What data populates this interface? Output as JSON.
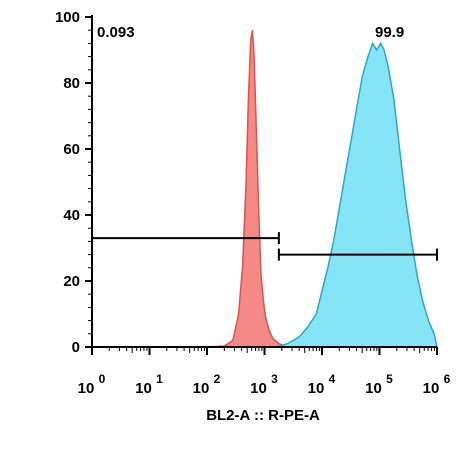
{
  "chart_data": {
    "type": "area",
    "xlabel": "BL2-A :: R-PE-A",
    "ylabel": "",
    "x_scale": "log",
    "xlim_exp": [
      0,
      6
    ],
    "ylim": [
      0,
      100
    ],
    "grid": false,
    "y_ticks": [
      {
        "value": 0,
        "label": "0"
      },
      {
        "value": 20,
        "label": "20"
      },
      {
        "value": 40,
        "label": "40"
      },
      {
        "value": 60,
        "label": "60"
      },
      {
        "value": 80,
        "label": "80"
      },
      {
        "value": 100,
        "label": "100"
      }
    ],
    "x_ticks": [
      {
        "base": "10",
        "exp": "0",
        "pos_exp": 0
      },
      {
        "base": "10",
        "exp": "1",
        "pos_exp": 1
      },
      {
        "base": "10",
        "exp": "2",
        "pos_exp": 2
      },
      {
        "base": "10",
        "exp": "3",
        "pos_exp": 3
      },
      {
        "base": "10",
        "exp": "4",
        "pos_exp": 4
      },
      {
        "base": "10",
        "exp": "5",
        "pos_exp": 5
      },
      {
        "base": "10",
        "exp": "6",
        "pos_exp": 6
      }
    ],
    "series": [
      {
        "color": "#f4837f",
        "stroke": "#d9534f",
        "points": [
          [
            2.0,
            0
          ],
          [
            2.3,
            0.3
          ],
          [
            2.45,
            2
          ],
          [
            2.55,
            10
          ],
          [
            2.62,
            25
          ],
          [
            2.68,
            50
          ],
          [
            2.72,
            75
          ],
          [
            2.76,
            93
          ],
          [
            2.79,
            96
          ],
          [
            2.82,
            88
          ],
          [
            2.86,
            65
          ],
          [
            2.9,
            40
          ],
          [
            2.94,
            22
          ],
          [
            2.98,
            14
          ],
          [
            3.02,
            9
          ],
          [
            3.08,
            5
          ],
          [
            3.15,
            2.5
          ],
          [
            3.25,
            1
          ],
          [
            3.4,
            0
          ]
        ]
      },
      {
        "color": "#7fe3f7",
        "stroke": "#2aa7c9",
        "points": [
          [
            3.2,
            0
          ],
          [
            3.4,
            1
          ],
          [
            3.6,
            3
          ],
          [
            3.75,
            6
          ],
          [
            3.9,
            10
          ],
          [
            4.0,
            17
          ],
          [
            4.1,
            24
          ],
          [
            4.2,
            32
          ],
          [
            4.3,
            42
          ],
          [
            4.4,
            52
          ],
          [
            4.5,
            62
          ],
          [
            4.6,
            72
          ],
          [
            4.7,
            82
          ],
          [
            4.8,
            88
          ],
          [
            4.88,
            92
          ],
          [
            4.95,
            90
          ],
          [
            5.02,
            92
          ],
          [
            5.08,
            90
          ],
          [
            5.15,
            85
          ],
          [
            5.25,
            75
          ],
          [
            5.35,
            60
          ],
          [
            5.45,
            45
          ],
          [
            5.55,
            33
          ],
          [
            5.65,
            22
          ],
          [
            5.75,
            14
          ],
          [
            5.85,
            8
          ],
          [
            5.95,
            4
          ],
          [
            6.0,
            0
          ]
        ]
      }
    ],
    "gates": [
      {
        "label": "0.093",
        "x_start_exp": 0,
        "x_end_exp": 3.25,
        "y": 33,
        "label_position": "top-left"
      },
      {
        "label": "99.9",
        "x_start_exp": 3.25,
        "x_end_exp": 6,
        "y": 28,
        "label_position": "top-right"
      }
    ]
  }
}
